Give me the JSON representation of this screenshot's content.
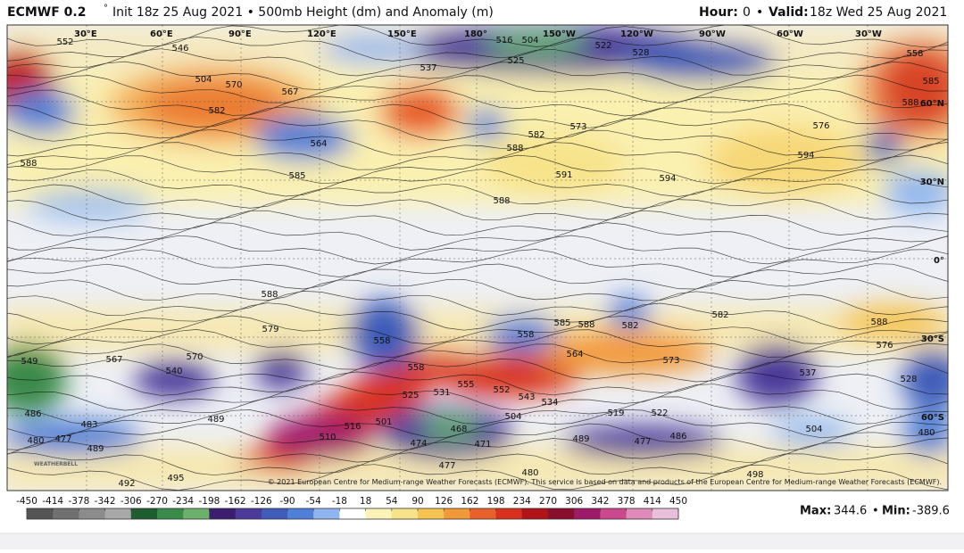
{
  "header": {
    "model": "ECMWF 0.2",
    "model_unit": "°",
    "title": "Init 18z 25 Aug 2021 • 500mb Height (dm) and Anomaly (m)",
    "hour_label": "Hour:",
    "hour": "0",
    "separator": "•",
    "valid_label": "Valid:",
    "valid": "18z Wed 25 Aug 2021"
  },
  "map": {
    "lon_labels": [
      "30°E",
      "60°E",
      "90°E",
      "120°E",
      "150°E",
      "180°",
      "150°W",
      "120°W",
      "90°W",
      "60°W",
      "30°W"
    ],
    "lat_labels": [
      "60°N",
      "30°N",
      "0°",
      "30°S",
      "60°S"
    ],
    "contour_labels": [
      552,
      546,
      504,
      570,
      567,
      582,
      564,
      585,
      588,
      537,
      516,
      504,
      525,
      522,
      528,
      573,
      582,
      588,
      591,
      588,
      594,
      576,
      594,
      585,
      588,
      558,
      588,
      579,
      585,
      588,
      582,
      582,
      588,
      576,
      558,
      558,
      564,
      573,
      558,
      567,
      570,
      540,
      549,
      537,
      528,
      555,
      552,
      543,
      534,
      531,
      525,
      501,
      516,
      510,
      504,
      519,
      522,
      489,
      483,
      477,
      480,
      489,
      486,
      474,
      468,
      471,
      477,
      489,
      477,
      486,
      504,
      480,
      492,
      495,
      498,
      480
    ],
    "copyright": "© 2021 European Centre for Medium-range Weather Forecasts (ECMWF). This service is based on data and products of the European Centre for Medium-range Weather Forecasts (ECMWF).",
    "logo": "WEATHERBELL"
  },
  "colorbar": {
    "ticks": [
      -450,
      -414,
      -378,
      -342,
      -306,
      -270,
      -234,
      -198,
      -162,
      -126,
      -90,
      -54,
      -18,
      18,
      54,
      90,
      126,
      162,
      198,
      234,
      270,
      306,
      342,
      378,
      414,
      450
    ],
    "colors": [
      "#555555",
      "#707070",
      "#8c8c8c",
      "#a8a8a8",
      "#1f5d2e",
      "#3a8a4a",
      "#6cb26c",
      "#3b1e6e",
      "#4b3a9a",
      "#3e5cb8",
      "#4f7fd6",
      "#8fb6ee",
      "#ffffff",
      "#fbf3b8",
      "#f7e38a",
      "#f5c451",
      "#f29a3a",
      "#e8612b",
      "#d9301e",
      "#b01418",
      "#8a0f2e",
      "#a01a6a",
      "#c9488e",
      "#e08ab9",
      "#e9bfd9"
    ]
  },
  "stats": {
    "max_label": "Max:",
    "max": 344.6,
    "separator": "•",
    "min_label": "Min:",
    "min": -389.6
  }
}
